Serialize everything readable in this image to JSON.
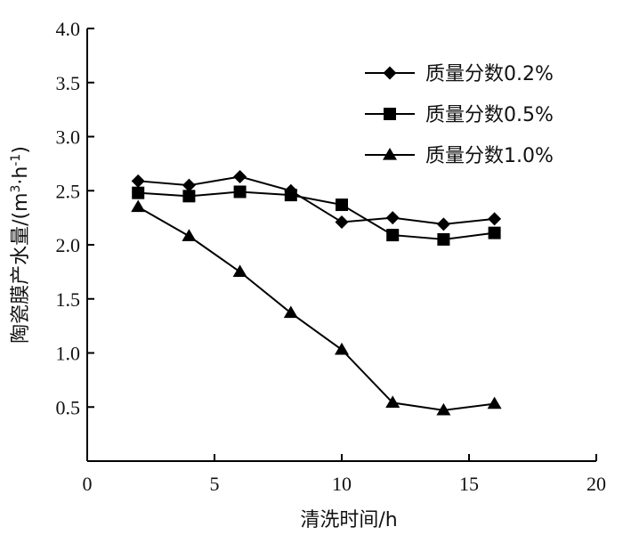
{
  "chart_data": {
    "type": "line",
    "xlabel": "清洗时间/h",
    "ylabel_main": "陶瓷膜产水量/(m",
    "ylabel_sup1": "3",
    "ylabel_mid": "·h",
    "ylabel_sup2": "-1",
    "ylabel_end": ")",
    "xlim": [
      0,
      20
    ],
    "ylim": [
      0,
      4.0
    ],
    "x_ticks": [
      "0",
      "5",
      "10",
      "15",
      "20"
    ],
    "y_ticks": [
      "0.5",
      "1.0",
      "1.5",
      "2.0",
      "2.5",
      "3.0",
      "3.5",
      "4.0"
    ],
    "grid": false,
    "legend_position": "top-right",
    "series": [
      {
        "name": "质量分数0.2%",
        "marker": "diamond",
        "x": [
          2,
          4,
          6,
          8,
          10,
          12,
          14,
          16
        ],
        "values": [
          2.59,
          2.55,
          2.63,
          2.5,
          2.21,
          2.25,
          2.19,
          2.24
        ]
      },
      {
        "name": "质量分数0.5%",
        "marker": "square",
        "x": [
          2,
          4,
          6,
          8,
          10,
          12,
          14,
          16
        ],
        "values": [
          2.48,
          2.45,
          2.49,
          2.46,
          2.37,
          2.09,
          2.05,
          2.11
        ]
      },
      {
        "name": "质量分数1.0%",
        "marker": "triangle",
        "x": [
          2,
          4,
          6,
          8,
          10,
          12,
          14,
          16
        ],
        "values": [
          2.35,
          2.08,
          1.75,
          1.37,
          1.03,
          0.54,
          0.47,
          0.53
        ]
      }
    ]
  }
}
